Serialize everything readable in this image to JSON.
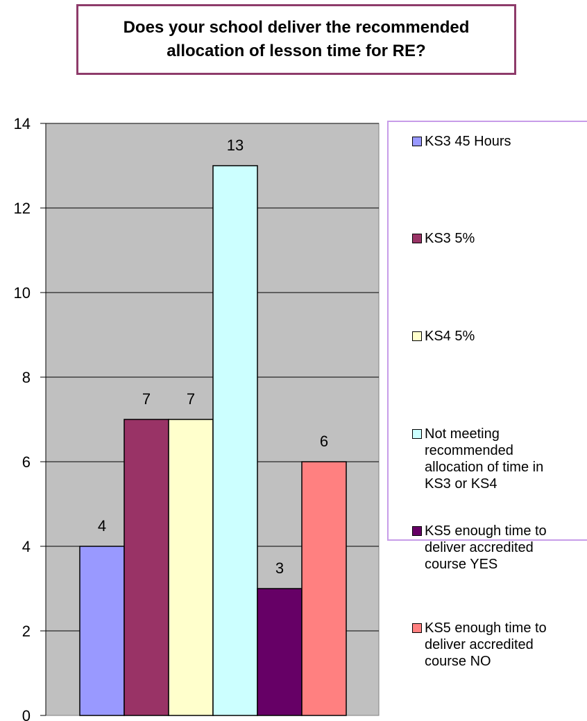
{
  "chart_data": {
    "type": "bar",
    "title": "Does your school deliver the recommended allocation of lesson time for RE?",
    "xlabel": "",
    "ylabel": "",
    "ylim": [
      0,
      14
    ],
    "yticks": [
      "0",
      "2",
      "4",
      "6",
      "8",
      "10",
      "12",
      "14"
    ],
    "grid": true,
    "plot_background": "#c0c0c0",
    "legend_position": "right",
    "series": [
      {
        "name": "KS3 45 Hours",
        "value": 4,
        "label": "4",
        "color": "#9999ff"
      },
      {
        "name": "KS3 5%",
        "value": 7,
        "label": "7",
        "color": "#993366"
      },
      {
        "name": "KS4 5%",
        "value": 7,
        "label": "7",
        "color": "#ffffcc"
      },
      {
        "name": "Not meeting recommended allocation of time in KS3 or KS4",
        "value": 13,
        "label": "13",
        "color": "#ccffff"
      },
      {
        "name": "KS5 enough time to deliver accredited course  YES",
        "value": 3,
        "label": "3",
        "color": "#660066"
      },
      {
        "name": "KS5 enough time to deliver accredited course  NO",
        "value": 6,
        "label": "6",
        "color": "#ff8080"
      }
    ]
  }
}
